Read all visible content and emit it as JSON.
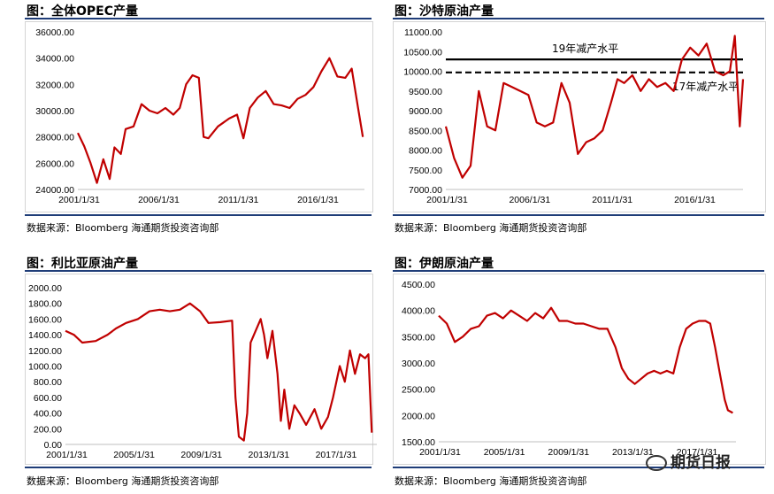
{
  "panels": [
    {
      "title": "图：全体OPEC产量",
      "source": "数据来源：Bloomberg    海通期货投资咨询部"
    },
    {
      "title": "图：沙特原油产量",
      "source": "数据来源：Bloomberg    海通期货投资咨询部"
    },
    {
      "title": "图：利比亚原油产量",
      "source": "数据来源：Bloomberg    海通期货投资咨询部"
    },
    {
      "title": "图：伊朗原油产量",
      "source": "数据来源：Bloomberg    海通期货投资咨询部"
    }
  ],
  "watermark": "期货日报",
  "colors": {
    "series": "#c00000",
    "rule": "#1f3d78"
  },
  "chart_data": [
    {
      "type": "line",
      "title": "图：全体OPEC产量",
      "ylim": [
        24000,
        36000
      ],
      "yticks": [
        "24000.00",
        "26000.00",
        "28000.00",
        "30000.00",
        "32000.00",
        "34000.00",
        "36000.00"
      ],
      "xlim": [
        2001.0,
        2019.0
      ],
      "xticks": [
        {
          "x": 2001.08,
          "label": "2001/1/31"
        },
        {
          "x": 2006.08,
          "label": "2006/1/31"
        },
        {
          "x": 2011.08,
          "label": "2011/1/31"
        },
        {
          "x": 2016.08,
          "label": "2016/1/31"
        }
      ],
      "series": [
        {
          "x": [
            2001.0,
            2001.4,
            2001.8,
            2002.2,
            2002.6,
            2003.0,
            2003.3,
            2003.7,
            2004.0,
            2004.5,
            2005.0,
            2005.5,
            2006.0,
            2006.5,
            2007.0,
            2007.4,
            2007.8,
            2008.2,
            2008.6,
            2008.9,
            2009.2,
            2009.8,
            2010.5,
            2011.0,
            2011.4,
            2011.8,
            2012.3,
            2012.8,
            2013.3,
            2013.8,
            2014.3,
            2014.8,
            2015.3,
            2015.8,
            2016.3,
            2016.8,
            2017.3,
            2017.8,
            2018.2,
            2018.6,
            2018.9
          ],
          "y": [
            28300,
            27300,
            26000,
            24500,
            26300,
            24800,
            27200,
            26700,
            28600,
            28800,
            30500,
            30000,
            29800,
            30200,
            29700,
            30200,
            32000,
            32700,
            32500,
            28000,
            27900,
            28800,
            29400,
            29700,
            27900,
            30200,
            31000,
            31500,
            30500,
            30400,
            30200,
            30900,
            31200,
            31800,
            33000,
            34000,
            32600,
            32500,
            33200,
            30200,
            28000
          ]
        }
      ]
    },
    {
      "type": "line",
      "title": "图：沙特原油产量",
      "ylim": [
        7000,
        11000
      ],
      "yticks": [
        "7000.00",
        "7500.00",
        "8000.00",
        "8500.00",
        "9000.00",
        "9500.00",
        "10000.00",
        "10500.00",
        "11000.00"
      ],
      "xlim": [
        2001.0,
        2019.0
      ],
      "xticks": [
        {
          "x": 2001.08,
          "label": "2001/1/31"
        },
        {
          "x": 2006.08,
          "label": "2006/1/31"
        },
        {
          "x": 2011.08,
          "label": "2011/1/31"
        },
        {
          "x": 2016.08,
          "label": "2016/1/31"
        }
      ],
      "series": [
        {
          "x": [
            2001.0,
            2001.5,
            2002.0,
            2002.5,
            2003.0,
            2003.5,
            2004.0,
            2004.5,
            2005.0,
            2005.5,
            2006.0,
            2006.5,
            2007.0,
            2007.5,
            2008.0,
            2008.5,
            2009.0,
            2009.5,
            2010.0,
            2010.5,
            2011.0,
            2011.4,
            2011.8,
            2012.3,
            2012.8,
            2013.3,
            2013.8,
            2014.3,
            2014.8,
            2015.3,
            2015.8,
            2016.3,
            2016.8,
            2017.3,
            2017.8,
            2018.2,
            2018.5,
            2018.8,
            2019.0
          ],
          "y": [
            8600,
            7800,
            7300,
            7600,
            9500,
            8600,
            8500,
            9700,
            9600,
            9500,
            9400,
            8700,
            8600,
            8700,
            9700,
            9200,
            7900,
            8200,
            8300,
            8500,
            9200,
            9800,
            9700,
            9900,
            9500,
            9800,
            9600,
            9700,
            9500,
            10300,
            10600,
            10400,
            10700,
            10000,
            9900,
            10000,
            10900,
            8600,
            9800
          ]
        }
      ],
      "annotations": [
        {
          "text": "19年减产水平",
          "level": 10300,
          "style": "solid"
        },
        {
          "text": "17年减产水平",
          "level": 9970,
          "style": "dashed"
        }
      ]
    },
    {
      "type": "line",
      "title": "图：利比亚原油产量",
      "ylim": [
        0,
        2000
      ],
      "yticks": [
        "0.00",
        "200.00",
        "400.00",
        "600.00",
        "800.00",
        "1000.00",
        "1200.00",
        "1400.00",
        "1600.00",
        "1800.00",
        "2000.00"
      ],
      "xlim": [
        2001.0,
        2019.5
      ],
      "xticks": [
        {
          "x": 2001.08,
          "label": "2001/1/31"
        },
        {
          "x": 2005.08,
          "label": "2005/1/31"
        },
        {
          "x": 2009.08,
          "label": "2009/1/31"
        },
        {
          "x": 2013.08,
          "label": "2013/1/31"
        },
        {
          "x": 2017.08,
          "label": "2017/1/31"
        }
      ],
      "series": [
        {
          "x": [
            2001.0,
            2001.5,
            2002.0,
            2002.8,
            2003.5,
            2004.0,
            2004.6,
            2005.3,
            2006.0,
            2006.6,
            2007.2,
            2007.8,
            2008.4,
            2009.0,
            2009.5,
            2010.2,
            2010.9,
            2011.1,
            2011.3,
            2011.6,
            2011.8,
            2012.0,
            2012.3,
            2012.6,
            2012.8,
            2013.0,
            2013.3,
            2013.6,
            2013.8,
            2014.0,
            2014.3,
            2014.6,
            2014.9,
            2015.3,
            2015.8,
            2016.2,
            2016.6,
            2016.9,
            2017.3,
            2017.6,
            2017.9,
            2018.2,
            2018.5,
            2018.8,
            2019.0,
            2019.2
          ],
          "y": [
            1450,
            1400,
            1300,
            1320,
            1400,
            1480,
            1550,
            1600,
            1700,
            1720,
            1700,
            1720,
            1800,
            1700,
            1550,
            1560,
            1580,
            600,
            100,
            50,
            400,
            1300,
            1450,
            1600,
            1400,
            1100,
            1450,
            900,
            300,
            700,
            200,
            500,
            400,
            250,
            450,
            200,
            350,
            600,
            1000,
            800,
            1200,
            900,
            1150,
            1100,
            1150,
            150
          ]
        }
      ]
    },
    {
      "type": "line",
      "title": "图：伊朗原油产量",
      "ylim": [
        1500,
        4500
      ],
      "yticks": [
        "1500.00",
        "2000.00",
        "2500.00",
        "3000.00",
        "3500.00",
        "4000.00",
        "4500.00"
      ],
      "xlim": [
        2001.0,
        2019.5
      ],
      "xticks": [
        {
          "x": 2001.08,
          "label": "2001/1/31"
        },
        {
          "x": 2005.08,
          "label": "2005/1/31"
        },
        {
          "x": 2009.08,
          "label": "2009/1/31"
        },
        {
          "x": 2013.08,
          "label": "2013/1/31"
        },
        {
          "x": 2017.08,
          "label": "2017/1/31"
        }
      ],
      "series": [
        {
          "x": [
            2001.0,
            2001.5,
            2002.0,
            2002.5,
            2003.0,
            2003.5,
            2004.0,
            2004.5,
            2005.0,
            2005.5,
            2006.0,
            2006.5,
            2007.0,
            2007.5,
            2008.0,
            2008.5,
            2009.0,
            2009.5,
            2010.0,
            2010.5,
            2011.0,
            2011.5,
            2012.0,
            2012.4,
            2012.8,
            2013.2,
            2013.6,
            2014.0,
            2014.4,
            2014.8,
            2015.2,
            2015.6,
            2016.0,
            2016.4,
            2016.8,
            2017.2,
            2017.6,
            2017.9,
            2018.2,
            2018.5,
            2018.8,
            2019.0,
            2019.3
          ],
          "y": [
            3900,
            3750,
            3400,
            3500,
            3650,
            3700,
            3900,
            3950,
            3850,
            4000,
            3900,
            3800,
            3950,
            3850,
            4050,
            3800,
            3800,
            3750,
            3750,
            3700,
            3650,
            3650,
            3300,
            2900,
            2700,
            2600,
            2700,
            2800,
            2850,
            2800,
            2850,
            2800,
            3300,
            3650,
            3750,
            3800,
            3800,
            3750,
            3300,
            2800,
            2300,
            2100,
            2050
          ]
        }
      ]
    }
  ]
}
